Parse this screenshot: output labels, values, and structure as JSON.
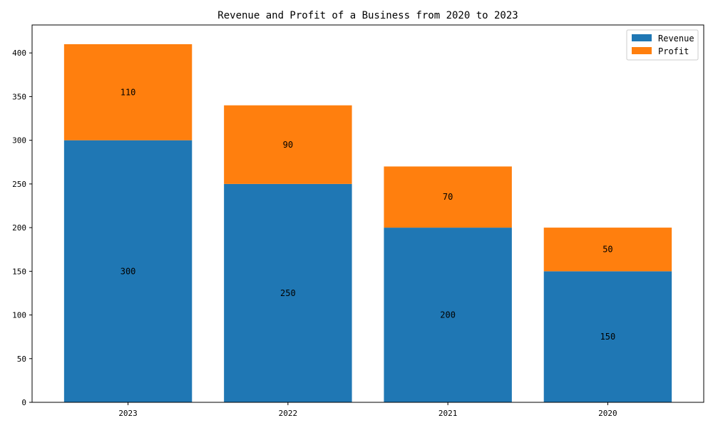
{
  "chart_data": {
    "type": "bar",
    "stacked": true,
    "title": "Revenue and Profit of a Business from 2020 to 2023",
    "xlabel": "",
    "ylabel": "",
    "categories": [
      "2023",
      "2022",
      "2021",
      "2020"
    ],
    "series": [
      {
        "name": "Revenue",
        "values": [
          300,
          250,
          200,
          150
        ],
        "color": "#1f77b4"
      },
      {
        "name": "Profit",
        "values": [
          110,
          90,
          70,
          50
        ],
        "color": "#ff7f0e"
      }
    ],
    "ylim": [
      0,
      432
    ],
    "yticks": [
      0,
      50,
      100,
      150,
      200,
      250,
      300,
      350,
      400
    ],
    "grid": false,
    "legend_position": "top-right"
  }
}
